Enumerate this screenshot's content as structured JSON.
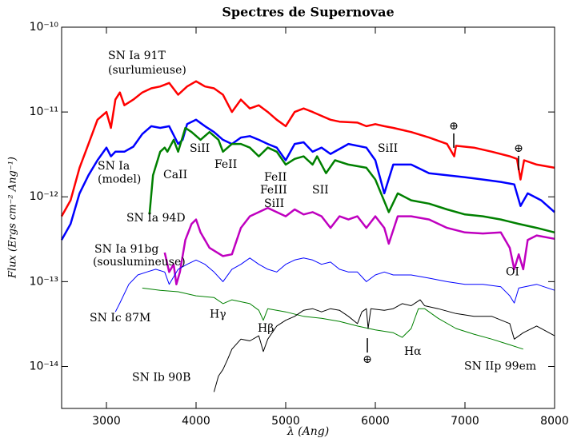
{
  "chart_data": {
    "type": "line",
    "title": "Spectres de Supernovae",
    "xlabel": "λ (Ang)",
    "ylabel": "Flux (Ergs cm⁻² Ang⁻¹)",
    "xlim": [
      2500,
      8000
    ],
    "xticks": [
      3000,
      4000,
      5000,
      6000,
      7000,
      8000
    ],
    "ylim": [
      3.2e-15,
      1e-10
    ],
    "yscale": "log",
    "yticks": [
      {
        "value": 1e-10,
        "label": "10⁻¹⁰"
      },
      {
        "value": 1e-11,
        "label": "10⁻¹¹"
      },
      {
        "value": 1e-12,
        "label": "10⁻¹²"
      },
      {
        "value": 1e-13,
        "label": "10⁻¹³"
      },
      {
        "value": 1e-14,
        "label": "10⁻¹⁴"
      }
    ],
    "series": [
      {
        "color": "#ff0000",
        "x": [
          2500,
          2600,
          2700,
          2800,
          2900,
          3000,
          3050,
          3100,
          3150,
          3200,
          3300,
          3400,
          3500,
          3600,
          3700,
          3800,
          3900,
          4000,
          4100,
          4200,
          4300,
          4400,
          4500,
          4600,
          4700,
          4800,
          4900,
          5000,
          5100,
          5200,
          5300,
          5400,
          5500,
          5600,
          5800,
          5900,
          6000,
          6100,
          6200,
          6400,
          6600,
          6800,
          6880,
          6900,
          7100,
          7300,
          7500,
          7580,
          7620,
          7660,
          7800,
          8000
        ],
        "values": [
          5.9e-13,
          9.1e-13,
          2.2e-12,
          4.2e-12,
          8.1e-12,
          1e-11,
          6.5e-12,
          1.4e-11,
          1.7e-11,
          1.2e-11,
          1.4e-11,
          1.7e-11,
          1.9e-11,
          2e-11,
          2.2e-11,
          1.6e-11,
          2e-11,
          2.3e-11,
          2e-11,
          1.9e-11,
          1.6e-11,
          1e-11,
          1.4e-11,
          1.1e-11,
          1.2e-11,
          1e-11,
          8.1e-12,
          6.8e-12,
          1e-11,
          1.1e-11,
          1e-11,
          9e-12,
          8.1e-12,
          7.7e-12,
          7.5e-12,
          6.8e-12,
          7.2e-12,
          6.8e-12,
          6.5e-12,
          5.8e-12,
          5e-12,
          4.2e-12,
          3e-12,
          4e-12,
          3.8e-12,
          3.4e-12,
          3e-12,
          2.8e-12,
          1.6e-12,
          2.7e-12,
          2.4e-12,
          2.2e-12
        ]
      },
      {
        "color": "#0000ff",
        "x": [
          2500,
          2600,
          2700,
          2800,
          2900,
          3000,
          3050,
          3100,
          3200,
          3300,
          3400,
          3500,
          3600,
          3700,
          3800,
          3850,
          3900,
          4000,
          4100,
          4200,
          4300,
          4400,
          4500,
          4600,
          4700,
          4800,
          4900,
          5000,
          5100,
          5200,
          5300,
          5400,
          5500,
          5700,
          5900,
          6000,
          6100,
          6200,
          6400,
          6600,
          6800,
          7000,
          7200,
          7400,
          7550,
          7620,
          7700,
          7850,
          8000
        ],
        "values": [
          3.1e-13,
          4.8e-13,
          1.1e-12,
          1.8e-12,
          2.7e-12,
          3.8e-12,
          3e-12,
          3.4e-12,
          3.4e-12,
          3.9e-12,
          5.5e-12,
          6.8e-12,
          6.5e-12,
          6.8e-12,
          4.2e-12,
          4.7e-12,
          7.2e-12,
          8.1e-12,
          6.8e-12,
          5.8e-12,
          4.7e-12,
          4.2e-12,
          5e-12,
          5.2e-12,
          4.7e-12,
          4.2e-12,
          3.8e-12,
          2.7e-12,
          4.2e-12,
          4.4e-12,
          3.4e-12,
          3.8e-12,
          3.2e-12,
          4.2e-12,
          3.8e-12,
          2.7e-12,
          1.1e-12,
          2.4e-12,
          2.4e-12,
          1.9e-12,
          1.8e-12,
          1.7e-12,
          1.6e-12,
          1.5e-12,
          1.4e-12,
          7.8e-13,
          1.1e-12,
          9.1e-13,
          6.6e-13
        ]
      },
      {
        "color": "#008000",
        "x": [
          3480,
          3520,
          3600,
          3650,
          3680,
          3750,
          3800,
          3880,
          3950,
          4050,
          4150,
          4250,
          4300,
          4400,
          4500,
          4600,
          4700,
          4800,
          4900,
          5000,
          5100,
          5200,
          5300,
          5350,
          5450,
          5550,
          5700,
          5900,
          6000,
          6150,
          6250,
          6400,
          6600,
          6800,
          7000,
          7200,
          7400,
          7600,
          7800,
          8000
        ],
        "values": [
          6.2e-13,
          1.8e-12,
          3.4e-12,
          3.8e-12,
          3.4e-12,
          4.7e-12,
          3.4e-12,
          6.5e-12,
          5.8e-12,
          4.7e-12,
          5.8e-12,
          4.7e-12,
          3.4e-12,
          4.2e-12,
          4.2e-12,
          3.8e-12,
          3e-12,
          3.8e-12,
          3.4e-12,
          2.4e-12,
          2.8e-12,
          3e-12,
          2.4e-12,
          3e-12,
          1.9e-12,
          2.7e-12,
          2.4e-12,
          2.2e-12,
          1.6e-12,
          6.6e-13,
          1.1e-12,
          9.1e-13,
          8.3e-13,
          7.1e-13,
          6.2e-13,
          5.9e-13,
          5.4e-13,
          4.8e-13,
          4.3e-13,
          3.8e-13
        ]
      },
      {
        "color": "#bf00bf",
        "x": [
          3650,
          3700,
          3750,
          3780,
          3820,
          3880,
          3950,
          4000,
          4050,
          4150,
          4300,
          4400,
          4500,
          4600,
          4700,
          4800,
          4900,
          5000,
          5100,
          5200,
          5300,
          5400,
          5500,
          5600,
          5700,
          5800,
          5900,
          6000,
          6100,
          6150,
          6250,
          6400,
          6600,
          6800,
          7000,
          7200,
          7400,
          7500,
          7550,
          7600,
          7650,
          7700,
          7800,
          8000
        ],
        "values": [
          2.2e-13,
          1.3e-13,
          1.6e-13,
          9.3e-14,
          1.3e-13,
          3.1e-13,
          4.8e-13,
          5.4e-13,
          3.8e-13,
          2.5e-13,
          2e-13,
          2.1e-13,
          4.3e-13,
          5.9e-13,
          6.6e-13,
          7.4e-13,
          6.6e-13,
          5.9e-13,
          7.1e-13,
          6.2e-13,
          6.6e-13,
          5.9e-13,
          4.3e-13,
          5.9e-13,
          5.4e-13,
          5.9e-13,
          4.3e-13,
          5.9e-13,
          4.3e-13,
          2.8e-13,
          5.9e-13,
          5.9e-13,
          5.4e-13,
          4.3e-13,
          3.8e-13,
          3.7e-13,
          3.8e-13,
          2.5e-13,
          1.4e-13,
          2.1e-13,
          1.4e-13,
          3.1e-13,
          3.5e-13,
          3.2e-13
        ]
      },
      {
        "color": "#0000ff",
        "x": [
          3100,
          3150,
          3250,
          3350,
          3450,
          3550,
          3650,
          3700,
          3800,
          3900,
          4000,
          4100,
          4200,
          4300,
          4400,
          4500,
          4600,
          4700,
          4800,
          4900,
          5000,
          5100,
          5200,
          5300,
          5400,
          5500,
          5600,
          5700,
          5800,
          5900,
          6000,
          6100,
          6200,
          6400,
          6600,
          6800,
          7000,
          7200,
          7400,
          7500,
          7550,
          7600,
          7800,
          8000
        ],
        "values": [
          4.4e-14,
          5.6e-14,
          9.3e-14,
          1.2e-13,
          1.3e-13,
          1.4e-13,
          1.3e-13,
          9.3e-14,
          1.4e-13,
          1.6e-13,
          1.8e-13,
          1.6e-13,
          1.3e-13,
          1e-13,
          1.4e-13,
          1.6e-13,
          1.9e-13,
          1.6e-13,
          1.4e-13,
          1.3e-13,
          1.6e-13,
          1.8e-13,
          1.9e-13,
          1.8e-13,
          1.6e-13,
          1.7e-13,
          1.4e-13,
          1.3e-13,
          1.3e-13,
          1e-13,
          1.2e-13,
          1.3e-13,
          1.2e-13,
          1.2e-13,
          1.1e-13,
          1e-13,
          9.3e-14,
          9.3e-14,
          8.7e-14,
          6.8e-14,
          5.6e-14,
          8.4e-14,
          9.3e-14,
          7.9e-14
        ]
      },
      {
        "color": "#008000",
        "x": [
          3400,
          3600,
          3800,
          4000,
          4200,
          4300,
          4400,
          4600,
          4700,
          4750,
          4800,
          5000,
          5200,
          5400,
          5600,
          5800,
          6000,
          6200,
          6300,
          6400,
          6480,
          6550,
          6700,
          6900,
          7100,
          7300,
          7500,
          7650
        ],
        "values": [
          8.4e-14,
          7.9e-14,
          7.6e-14,
          6.8e-14,
          6.5e-14,
          5.5e-14,
          6.1e-14,
          5.5e-14,
          4.6e-14,
          3.5e-14,
          4.8e-14,
          4.4e-14,
          3.9e-14,
          3.7e-14,
          3.4e-14,
          3e-14,
          2.7e-14,
          2.5e-14,
          2.2e-14,
          2.8e-14,
          4.8e-14,
          4.8e-14,
          3.7e-14,
          2.8e-14,
          2.4e-14,
          2.1e-14,
          1.8e-14,
          1.6e-14
        ]
      },
      {
        "color": "#000000",
        "x": [
          4200,
          4250,
          4300,
          4350,
          4400,
          4500,
          4600,
          4700,
          4750,
          4800,
          4900,
          5000,
          5100,
          5200,
          5300,
          5400,
          5500,
          5600,
          5700,
          5800,
          5850,
          5900,
          5920,
          5950,
          6100,
          6200,
          6300,
          6400,
          6500,
          6550,
          6700,
          6900,
          7100,
          7300,
          7500,
          7550,
          7650,
          7800,
          8000
        ],
        "values": [
          5e-15,
          7.7e-15,
          9.2e-15,
          1.2e-14,
          1.6e-14,
          2.1e-14,
          2e-14,
          2.3e-14,
          1.5e-14,
          2.1e-14,
          3e-14,
          3.5e-14,
          3.9e-14,
          4.6e-14,
          4.8e-14,
          4.4e-14,
          4.8e-14,
          4.6e-14,
          3.9e-14,
          3.2e-14,
          4.4e-14,
          4.8e-14,
          2.8e-14,
          4.8e-14,
          4.6e-14,
          4.8e-14,
          5.5e-14,
          5.2e-14,
          6.1e-14,
          5.2e-14,
          4.8e-14,
          4.2e-14,
          3.9e-14,
          3.9e-14,
          3.2e-14,
          2.1e-14,
          2.5e-14,
          3e-14,
          2.3e-14
        ]
      }
    ],
    "annotations": [
      {
        "text": "SN Ia 91T",
        "x": 3018,
        "y": 4.6e-11
      },
      {
        "text": "(surlumieuse)",
        "x": 3018,
        "y": 3.1e-11
      },
      {
        "text": "SN Ia",
        "x": 2902,
        "y": 2.3e-12
      },
      {
        "text": "(model)",
        "x": 2902,
        "y": 1.6e-12
      },
      {
        "text": "CaII",
        "x": 3634,
        "y": 1.8e-12
      },
      {
        "text": "SiII",
        "x": 3929,
        "y": 3.7e-12
      },
      {
        "text": "FeII",
        "x": 4205,
        "y": 2.4e-12
      },
      {
        "text": "FeII",
        "x": 4759,
        "y": 1.7e-12
      },
      {
        "text": "FeIII",
        "x": 4714,
        "y": 1.2e-12
      },
      {
        "text": "SiII",
        "x": 4759,
        "y": 8.3e-13
      },
      {
        "text": "SII",
        "x": 5295,
        "y": 1.2e-12
      },
      {
        "text": "SiII",
        "x": 6027,
        "y": 3.7e-12
      },
      {
        "text": "SN Ia 94D",
        "x": 3223,
        "y": 5.6e-13
      },
      {
        "text": "SN Ia 91bg",
        "x": 2866,
        "y": 2.4e-13
      },
      {
        "text": "(souslumineuse)",
        "x": 2848,
        "y": 1.7e-13
      },
      {
        "text": "OI",
        "x": 7455,
        "y": 1.3e-13
      },
      {
        "text": "SN Ic 87M",
        "x": 2813,
        "y": 3.7e-14
      },
      {
        "text": "Hγ",
        "x": 4152,
        "y": 4.1e-14
      },
      {
        "text": "Hβ",
        "x": 4688,
        "y": 2.8e-14
      },
      {
        "text": "Hα",
        "x": 6321,
        "y": 1.5e-14
      },
      {
        "text": "SN IIp 99em",
        "x": 6991,
        "y": 1e-14
      },
      {
        "text": "SN Ib 90B",
        "x": 3286,
        "y": 7.4e-15
      }
    ],
    "markers": [
      {
        "text": "⊕",
        "x": 6875,
        "y": 6.8e-12
      },
      {
        "text": "⊕",
        "x": 7598,
        "y": 3.7e-12
      },
      {
        "text": "⊕",
        "x": 5911,
        "y": 1.2e-14
      }
    ]
  }
}
